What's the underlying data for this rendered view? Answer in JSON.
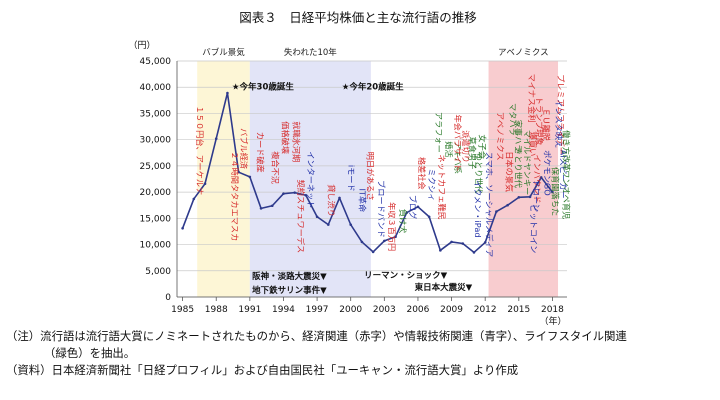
{
  "chart_data": {
    "type": "line",
    "title": "図表３　日経平均株価と主な流行語の推移",
    "ylabel": "（円）",
    "xlabel": "（年）",
    "ylim": [
      0,
      45000
    ],
    "xlim": [
      1984.5,
      2019.3
    ],
    "y_ticks": [
      0,
      5000,
      10000,
      15000,
      20000,
      25000,
      30000,
      35000,
      40000,
      45000
    ],
    "y_tick_labels": [
      "0",
      "5,000",
      "10,000",
      "15,000",
      "20,000",
      "25,000",
      "30,000",
      "35,000",
      "40,000",
      "45,000"
    ],
    "x_ticks": [
      1985,
      1988,
      1991,
      1994,
      1997,
      2000,
      2003,
      2006,
      2009,
      2012,
      2015,
      2018
    ],
    "grid": true,
    "line_color": "#2e3a8c",
    "series": [
      {
        "x": [
          1985,
          1986,
          1987,
          1988,
          1989,
          1990,
          1991,
          1992,
          1993,
          1994,
          1995,
          1996,
          1997,
          1998,
          1999,
          2000,
          2001,
          2002,
          2003,
          2004,
          2005,
          2006,
          2007,
          2008,
          2009,
          2010,
          2011,
          2012,
          2013,
          2014,
          2015,
          2016,
          2017,
          2018
        ],
        "values": [
          13100,
          18700,
          21600,
          30200,
          38900,
          23800,
          22900,
          16900,
          17400,
          19700,
          19900,
          19400,
          15300,
          13800,
          18900,
          13800,
          10500,
          8600,
          10700,
          11500,
          16100,
          17200,
          15300,
          8900,
          10500,
          10200,
          8500,
          10400,
          16300,
          17500,
          19000,
          19100,
          22800,
          20000
        ]
      }
    ],
    "eras": [
      {
        "label": "バブル景気",
        "from": 1986.3,
        "to": 1991.0,
        "color": "#fdf6d6"
      },
      {
        "label": "失われた10年",
        "from": 1991.0,
        "to": 2001.8,
        "color": "#e2e4f7"
      },
      {
        "label": "アベノミクス",
        "from": 2012.3,
        "to": 2018.5,
        "color": "#f8cccf"
      }
    ],
    "annotations": [
      {
        "text": "★今年30歳誕生",
        "x": 1989.4,
        "y": 39600,
        "color": "#111111",
        "dir": "h"
      },
      {
        "text": "★今年20歳誕生",
        "x": 1999.2,
        "y": 39600,
        "color": "#111111",
        "dir": "h"
      },
      {
        "text": "阪神・淡路大震災▼",
        "x": 1991.2,
        "y": 3400,
        "color": "#111111",
        "dir": "h"
      },
      {
        "text": "地下鉄サリン事件▼",
        "x": 1991.2,
        "y": 800,
        "color": "#111111",
        "dir": "h"
      },
      {
        "text": "リーマン・ショック▼",
        "x": 2001.2,
        "y": 3600,
        "color": "#111111",
        "dir": "h"
      },
      {
        "text": "東日本大震災▼",
        "x": 2005.7,
        "y": 1300,
        "color": "#111111",
        "dir": "h"
      }
    ],
    "buzzwords": [
      {
        "text": "１５０円台、アーケルナ",
        "x": 1986.3,
        "y": 36500,
        "color": "#d62a2a"
      },
      {
        "text": "バブル経済",
        "x": 1990.2,
        "y": 32200,
        "color": "#d62a2a"
      },
      {
        "text": "２４時間タタカエマスカ",
        "x": 1989.4,
        "y": 27800,
        "color": "#d62a2a"
      },
      {
        "text": "カード破産",
        "x": 1991.7,
        "y": 31500,
        "color": "#d62a2a"
      },
      {
        "text": "複合不況",
        "x": 1993.0,
        "y": 27800,
        "color": "#d62a2a"
      },
      {
        "text": "価格破壊",
        "x": 1993.9,
        "y": 33500,
        "color": "#d62a2a"
      },
      {
        "text": "就職氷河期",
        "x": 1994.9,
        "y": 33500,
        "color": "#d62a2a"
      },
      {
        "text": "契約スチュワーデス",
        "x": 1995.3,
        "y": 22400,
        "color": "#d62a2a"
      },
      {
        "text": "インターネット",
        "x": 1996.2,
        "y": 27800,
        "color": "#2130a8"
      },
      {
        "text": "貸し渋り",
        "x": 1998.0,
        "y": 21500,
        "color": "#d62a2a"
      },
      {
        "text": "iモード",
        "x": 1999.8,
        "y": 25200,
        "color": "#2130a8"
      },
      {
        "text": "IT革命",
        "x": 2000.8,
        "y": 20700,
        "color": "#2130a8"
      },
      {
        "text": "明日があるさ",
        "x": 2001.5,
        "y": 27700,
        "color": "#d62a2a"
      },
      {
        "text": "ブロードバンド",
        "x": 2002.5,
        "y": 22300,
        "color": "#2130a8"
      },
      {
        "text": "年収３百万円",
        "x": 2003.4,
        "y": 18100,
        "color": "#d62a2a"
      },
      {
        "text": "負け犬",
        "x": 2004.4,
        "y": 16800,
        "color": "#2a7a2a"
      },
      {
        "text": "ブログ",
        "x": 2005.3,
        "y": 19500,
        "color": "#2130a8"
      },
      {
        "text": "格差社会",
        "x": 2006.1,
        "y": 26700,
        "color": "#d62a2a"
      },
      {
        "text": "ミクシィ",
        "x": 2007.0,
        "y": 24500,
        "color": "#2130a8"
      },
      {
        "text": "ネットカフェ難民",
        "x": 2007.9,
        "y": 27200,
        "color": "#d62a2a"
      },
      {
        "text": "アラフォー",
        "x": 2007.6,
        "y": 35300,
        "color": "#2a7a2a"
      },
      {
        "text": "婚活",
        "x": 2008.5,
        "y": 29700,
        "color": "#2a7a2a"
      },
      {
        "text": "アキバ系",
        "x": 2009.3,
        "y": 29700,
        "color": "#2a7a2a"
      },
      {
        "text": "年会パラサイト",
        "x": 2009.3,
        "y": 34800,
        "color": "#d62a2a"
      },
      {
        "text": "派遣切り",
        "x": 2010.0,
        "y": 31800,
        "color": "#d62a2a"
      },
      {
        "text": "草食男子",
        "x": 2010.6,
        "y": 30600,
        "color": "#2a7a2a"
      },
      {
        "text": "ゆとり世代",
        "x": 2011.2,
        "y": 27500,
        "color": "#2a7a2a"
      },
      {
        "text": "女子会",
        "x": 2011.5,
        "y": 31000,
        "color": "#2a7a2a"
      },
      {
        "text": "イクメン・iPad",
        "x": 2011.1,
        "y": 22300,
        "color": "#2130a8"
      },
      {
        "text": "スマホ、ソーシャルメディア",
        "x": 2012.1,
        "y": 27700,
        "color": "#2130a8"
      },
      {
        "text": "アベノミクス",
        "x": 2013.1,
        "y": 35300,
        "color": "#d62a2a"
      },
      {
        "text": "日本の景気",
        "x": 2013.9,
        "y": 27800,
        "color": "#d62a2a"
      },
      {
        "text": "マタハラ",
        "x": 2014.2,
        "y": 37000,
        "color": "#2a7a2a"
      },
      {
        "text": "家事ハラ",
        "x": 2014.7,
        "y": 33800,
        "color": "#2a7a2a"
      },
      {
        "text": "きとり世代",
        "x": 2014.7,
        "y": 28600,
        "color": "#2a7a2a"
      },
      {
        "text": "マイルドヤンキー",
        "x": 2015.5,
        "y": 31900,
        "color": "#2a7a2a"
      },
      {
        "text": "爆買い",
        "x": 2016.0,
        "y": 31500,
        "color": "#d62a2a"
      },
      {
        "text": "インバウンド",
        "x": 2016.4,
        "y": 27200,
        "color": "#d62a2a"
      },
      {
        "text": "ドローン",
        "x": 2016.3,
        "y": 22400,
        "color": "#2130a8"
      },
      {
        "text": "ビットコイン",
        "x": 2016.1,
        "y": 17700,
        "color": "#2130a8"
      },
      {
        "text": "マイナス金利",
        "x": 2015.9,
        "y": 42600,
        "color": "#d62a2a"
      },
      {
        "text": "トランプ現象",
        "x": 2016.6,
        "y": 38200,
        "color": "#d62a2a"
      },
      {
        "text": "ＥＵ離脱",
        "x": 2017.2,
        "y": 36000,
        "color": "#d62a2a"
      },
      {
        "text": "ポケモンGO",
        "x": 2017.3,
        "y": 28000,
        "color": "#2130a8"
      },
      {
        "text": "保育園落ちた",
        "x": 2018.0,
        "y": 24800,
        "color": "#2a7a2a"
      },
      {
        "text": "インスタ映え",
        "x": 2018.3,
        "y": 37700,
        "color": "#2130a8"
      },
      {
        "text": "AIスピーカー",
        "x": 2018.7,
        "y": 28100,
        "color": "#2130a8"
      },
      {
        "text": "プレミアムフライデー",
        "x": 2018.5,
        "y": 42500,
        "color": "#d62a2a"
      },
      {
        "text": "働き方改革",
        "x": 2019.0,
        "y": 31800,
        "color": "#2a7a2a"
      },
      {
        "text": "ワンオペ育児",
        "x": 2019.0,
        "y": 24200,
        "color": "#2a7a2a"
      }
    ]
  },
  "notes": [
    "（注）流行語は流行語大賞にノミネートされたものから、経済関連（赤字）や情報技術関連（青字）、ライフスタイル関連",
    "（緑色）を抽出。",
    "（資料）日本経済新聞社「日経プロフィル」および自由国民社「ユーキャン・流行語大賞」より作成"
  ]
}
